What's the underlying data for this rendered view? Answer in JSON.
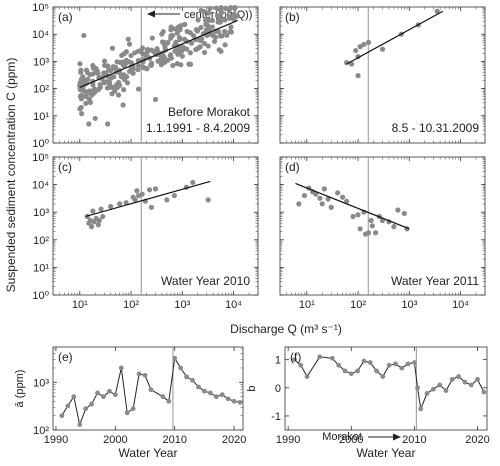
{
  "figure": {
    "ylabel_top": "Suspended sediment concentration C (ppm)",
    "xlabel_top": "Discharge Q (m³ s⁻¹)",
    "center_note": "center(log(Q))",
    "morakot_note": "Morakot"
  },
  "chart_data": [
    {
      "id": "a",
      "type": "scatter",
      "panel_label": "(a)",
      "title": "Before Morakot",
      "subtitle": "1.1.1991 - 8.4.2009",
      "xscale": "log",
      "yscale": "log",
      "xlim": [
        3,
        30000
      ],
      "ylim": [
        1,
        100000
      ],
      "xticks": [
        10,
        100,
        1000,
        10000
      ],
      "yticks": [
        1,
        10,
        100,
        1000,
        10000,
        100000
      ],
      "yticklabels": [
        "10⁰",
        "10¹",
        "10²",
        "10³",
        "10⁴",
        "10⁵"
      ],
      "vline_x": 158,
      "fit": {
        "x": [
          10,
          12000
        ],
        "y": [
          110,
          32000
        ]
      },
      "points_generated": {
        "count": 300,
        "xmin": 10,
        "xmax": 12000,
        "a": 110,
        "b": 0.81,
        "spread": 0.36
      },
      "points_extra": [
        [
          12,
          9000
        ],
        [
          35,
          5
        ],
        [
          15,
          5
        ],
        [
          13,
          150
        ],
        [
          20,
          8
        ],
        [
          70,
          25
        ],
        [
          300,
          40
        ],
        [
          4000,
          9000
        ]
      ]
    },
    {
      "id": "b",
      "type": "scatter",
      "panel_label": "(b)",
      "title": "",
      "subtitle": "8.5 - 10.31.2009",
      "xscale": "log",
      "yscale": "log",
      "xlim": [
        3,
        30000
      ],
      "ylim": [
        1,
        100000
      ],
      "vline_x": 158,
      "fit": {
        "x": [
          60,
          4500
        ],
        "y": [
          800,
          70000
        ]
      },
      "points": [
        [
          60,
          900
        ],
        [
          75,
          800
        ],
        [
          90,
          2500
        ],
        [
          100,
          1500
        ],
        [
          110,
          3500
        ],
        [
          130,
          4200
        ],
        [
          100,
          300
        ],
        [
          160,
          5000
        ],
        [
          300,
          2800
        ],
        [
          700,
          10000
        ],
        [
          1500,
          22000
        ],
        [
          3500,
          70000
        ]
      ]
    },
    {
      "id": "c",
      "type": "scatter",
      "panel_label": "(c)",
      "title": "Water Year 2010",
      "subtitle": "",
      "xscale": "log",
      "yscale": "log",
      "xlim": [
        3,
        30000
      ],
      "ylim": [
        1,
        100000
      ],
      "xticks": [
        10,
        100,
        1000,
        10000
      ],
      "yticks": [
        1,
        10,
        100,
        1000,
        10000,
        100000
      ],
      "yticklabels": [
        "10⁰",
        "10¹",
        "10²",
        "10³",
        "10⁴",
        "10⁵"
      ],
      "vline_x": 158,
      "fit": {
        "x": [
          13,
          3500
        ],
        "y": [
          700,
          13000
        ]
      },
      "points": [
        [
          14,
          700
        ],
        [
          15,
          400
        ],
        [
          16,
          500
        ],
        [
          17,
          300
        ],
        [
          18,
          1100
        ],
        [
          19,
          450
        ],
        [
          21,
          600
        ],
        [
          23,
          350
        ],
        [
          24,
          500
        ],
        [
          26,
          1300
        ],
        [
          28,
          700
        ],
        [
          40,
          1600
        ],
        [
          60,
          2000
        ],
        [
          80,
          2200
        ],
        [
          110,
          3500
        ],
        [
          140,
          4000
        ],
        [
          130,
          6000
        ],
        [
          165,
          4500
        ],
        [
          190,
          2500
        ],
        [
          230,
          6500
        ],
        [
          300,
          7000
        ],
        [
          500,
          2800
        ],
        [
          700,
          4000
        ],
        [
          1200,
          8000
        ],
        [
          3200,
          2800
        ],
        [
          1600,
          12000
        ],
        [
          250,
          1500
        ],
        [
          120,
          2800
        ]
      ]
    },
    {
      "id": "d",
      "type": "scatter",
      "panel_label": "(d)",
      "title": "Water Year 2011",
      "subtitle": "",
      "xscale": "log",
      "yscale": "log",
      "xlim": [
        3,
        30000
      ],
      "ylim": [
        1,
        100000
      ],
      "xticks": [
        10,
        100,
        1000,
        10000
      ],
      "vline_x": 158,
      "fit": {
        "x": [
          6,
          1000
        ],
        "y": [
          11000,
          250
        ]
      },
      "points": [
        [
          7,
          2000
        ],
        [
          9,
          4000
        ],
        [
          11,
          7500
        ],
        [
          13,
          5500
        ],
        [
          15,
          4500
        ],
        [
          18,
          3200
        ],
        [
          20,
          2000
        ],
        [
          22,
          7000
        ],
        [
          26,
          3000
        ],
        [
          30,
          1500
        ],
        [
          40,
          5000
        ],
        [
          50,
          3500
        ],
        [
          60,
          2500
        ],
        [
          80,
          700
        ],
        [
          100,
          800
        ],
        [
          110,
          250
        ],
        [
          130,
          1000
        ],
        [
          140,
          160
        ],
        [
          160,
          180
        ],
        [
          180,
          500
        ],
        [
          190,
          320
        ],
        [
          220,
          180
        ],
        [
          260,
          700
        ],
        [
          300,
          500
        ],
        [
          400,
          450
        ],
        [
          500,
          300
        ],
        [
          600,
          1200
        ],
        [
          800,
          900
        ],
        [
          900,
          250
        ]
      ]
    },
    {
      "id": "e",
      "type": "line",
      "panel_label": "(e)",
      "title": "",
      "subtitle": "",
      "xlabel": "Water Year",
      "ylabel": "ā (ppm)",
      "xlim": [
        1989.5,
        2021.5
      ],
      "yscale": "log",
      "ylim": [
        100,
        5500
      ],
      "xticks": [
        1990,
        2000,
        2010,
        2020
      ],
      "yticks": [
        100,
        1000
      ],
      "yticklabels": [
        "10²",
        "10³"
      ],
      "vline_x": 2009.7,
      "x": [
        1991,
        1992,
        1993,
        1994,
        1995,
        1996,
        1997,
        1998,
        1999,
        2000,
        2001,
        2002,
        2003,
        2004,
        2005,
        2006,
        2008,
        2009,
        2010,
        2011,
        2012,
        2013,
        2014,
        2015,
        2016,
        2017,
        2018,
        2019,
        2020,
        2021
      ],
      "y": [
        200,
        320,
        500,
        130,
        280,
        350,
        600,
        500,
        650,
        550,
        2000,
        230,
        280,
        1500,
        1400,
        700,
        500,
        400,
        3200,
        2000,
        1300,
        1100,
        800,
        650,
        600,
        500,
        550,
        450,
        400,
        380
      ]
    },
    {
      "id": "f",
      "type": "line",
      "panel_label": "(f)",
      "title": "",
      "subtitle": "",
      "xlabel": "Water Year",
      "ylabel": "b",
      "xlim": [
        1989.5,
        2021.5
      ],
      "ylim": [
        -1.5,
        1.45
      ],
      "xticks": [
        1990,
        2000,
        2010,
        2020
      ],
      "yticks": [
        -1,
        0,
        1
      ],
      "vline_x": 2010.3,
      "x": [
        1991,
        1992,
        1993,
        1995,
        1997,
        1998,
        1999,
        2000,
        2001,
        2002,
        2003,
        2004,
        2005,
        2006,
        2007,
        2008,
        2009,
        2010,
        2010.5,
        2011,
        2012,
        2013,
        2014,
        2015,
        2016,
        2017,
        2018,
        2019,
        2020,
        2021
      ],
      "y": [
        1.0,
        0.8,
        0.4,
        1.1,
        1.05,
        0.8,
        0.6,
        0.5,
        0.6,
        0.95,
        0.9,
        0.6,
        0.4,
        0.8,
        0.85,
        0.7,
        0.85,
        0.9,
        0.0,
        -0.75,
        -0.2,
        -0.05,
        0.1,
        -0.1,
        0.3,
        0.4,
        0.2,
        0.1,
        0.3,
        -0.15
      ]
    }
  ]
}
